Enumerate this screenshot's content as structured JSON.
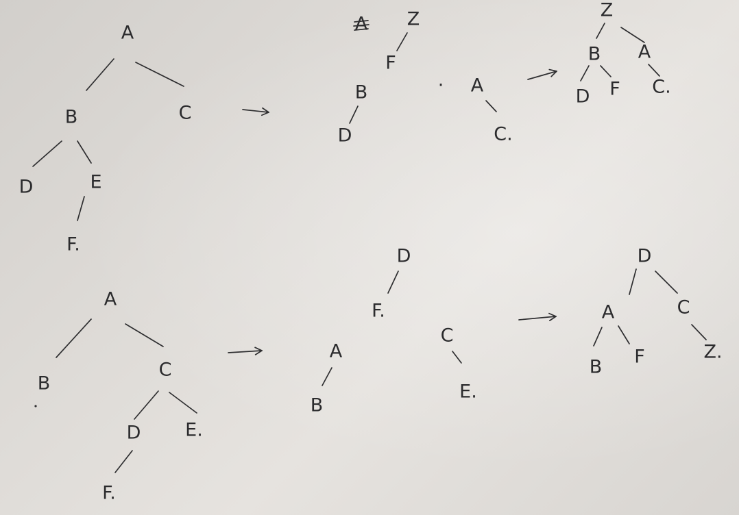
{
  "colors": {
    "paper": "#dedbd7",
    "ink": "#2b2b2d"
  },
  "trees": [
    {
      "nodes": [
        {
          "id": "a",
          "label": "A"
        },
        {
          "id": "b",
          "label": "B"
        },
        {
          "id": "c",
          "label": "C"
        },
        {
          "id": "d",
          "label": "D"
        },
        {
          "id": "e",
          "label": "E"
        },
        {
          "id": "f",
          "label": "F."
        }
      ],
      "edges": [
        [
          "a",
          "b"
        ],
        [
          "a",
          "c"
        ],
        [
          "b",
          "d"
        ],
        [
          "b",
          "e"
        ],
        [
          "e",
          "f"
        ]
      ]
    },
    {
      "nodes": [
        {
          "id": "astruck",
          "label": "A"
        },
        {
          "id": "z",
          "label": "Z"
        },
        {
          "id": "f",
          "label": "F"
        },
        {
          "id": "b",
          "label": "B"
        },
        {
          "id": "d",
          "label": "D"
        }
      ],
      "edges": [
        [
          "z",
          "f"
        ],
        [
          "b",
          "d"
        ]
      ]
    },
    {
      "nodes": [
        {
          "id": "dot",
          "label": "."
        },
        {
          "id": "a",
          "label": "A"
        },
        {
          "id": "c",
          "label": "C."
        }
      ],
      "edges": [
        [
          "a",
          "c"
        ]
      ]
    },
    {
      "nodes": [
        {
          "id": "z",
          "label": "Z"
        },
        {
          "id": "b",
          "label": "B"
        },
        {
          "id": "a",
          "label": "A"
        },
        {
          "id": "d",
          "label": "D"
        },
        {
          "id": "f",
          "label": "F"
        },
        {
          "id": "c",
          "label": "C."
        }
      ],
      "edges": [
        [
          "z",
          "b"
        ],
        [
          "z",
          "a"
        ],
        [
          "b",
          "d"
        ],
        [
          "b",
          "f"
        ],
        [
          "a",
          "c"
        ]
      ]
    },
    {
      "nodes": [
        {
          "id": "a",
          "label": "A"
        },
        {
          "id": "b",
          "label": "B"
        },
        {
          "id": "c",
          "label": "C"
        },
        {
          "id": "d",
          "label": "D"
        },
        {
          "id": "e",
          "label": "E."
        },
        {
          "id": "f",
          "label": "F."
        }
      ],
      "edges": [
        [
          "a",
          "b"
        ],
        [
          "a",
          "c"
        ],
        [
          "c",
          "d"
        ],
        [
          "c",
          "e"
        ],
        [
          "d",
          "f"
        ]
      ]
    },
    {
      "nodes": [
        {
          "id": "d",
          "label": "D"
        },
        {
          "id": "f",
          "label": "F."
        },
        {
          "id": "a",
          "label": "A"
        },
        {
          "id": "b",
          "label": "B"
        }
      ],
      "edges": [
        [
          "d",
          "f"
        ],
        [
          "a",
          "b"
        ]
      ]
    },
    {
      "nodes": [
        {
          "id": "c",
          "label": "C"
        },
        {
          "id": "e",
          "label": "E."
        }
      ],
      "edges": [
        [
          "c",
          "e"
        ]
      ]
    },
    {
      "nodes": [
        {
          "id": "d",
          "label": "D"
        },
        {
          "id": "a",
          "label": "A"
        },
        {
          "id": "c",
          "label": "C"
        },
        {
          "id": "b",
          "label": "B"
        },
        {
          "id": "f",
          "label": "F"
        },
        {
          "id": "z",
          "label": "Z."
        }
      ],
      "edges": [
        [
          "d",
          "a"
        ],
        [
          "d",
          "c"
        ],
        [
          "a",
          "b"
        ],
        [
          "a",
          "f"
        ],
        [
          "c",
          "z"
        ]
      ]
    }
  ],
  "arrows": [
    "→",
    "→",
    "→",
    "→"
  ]
}
